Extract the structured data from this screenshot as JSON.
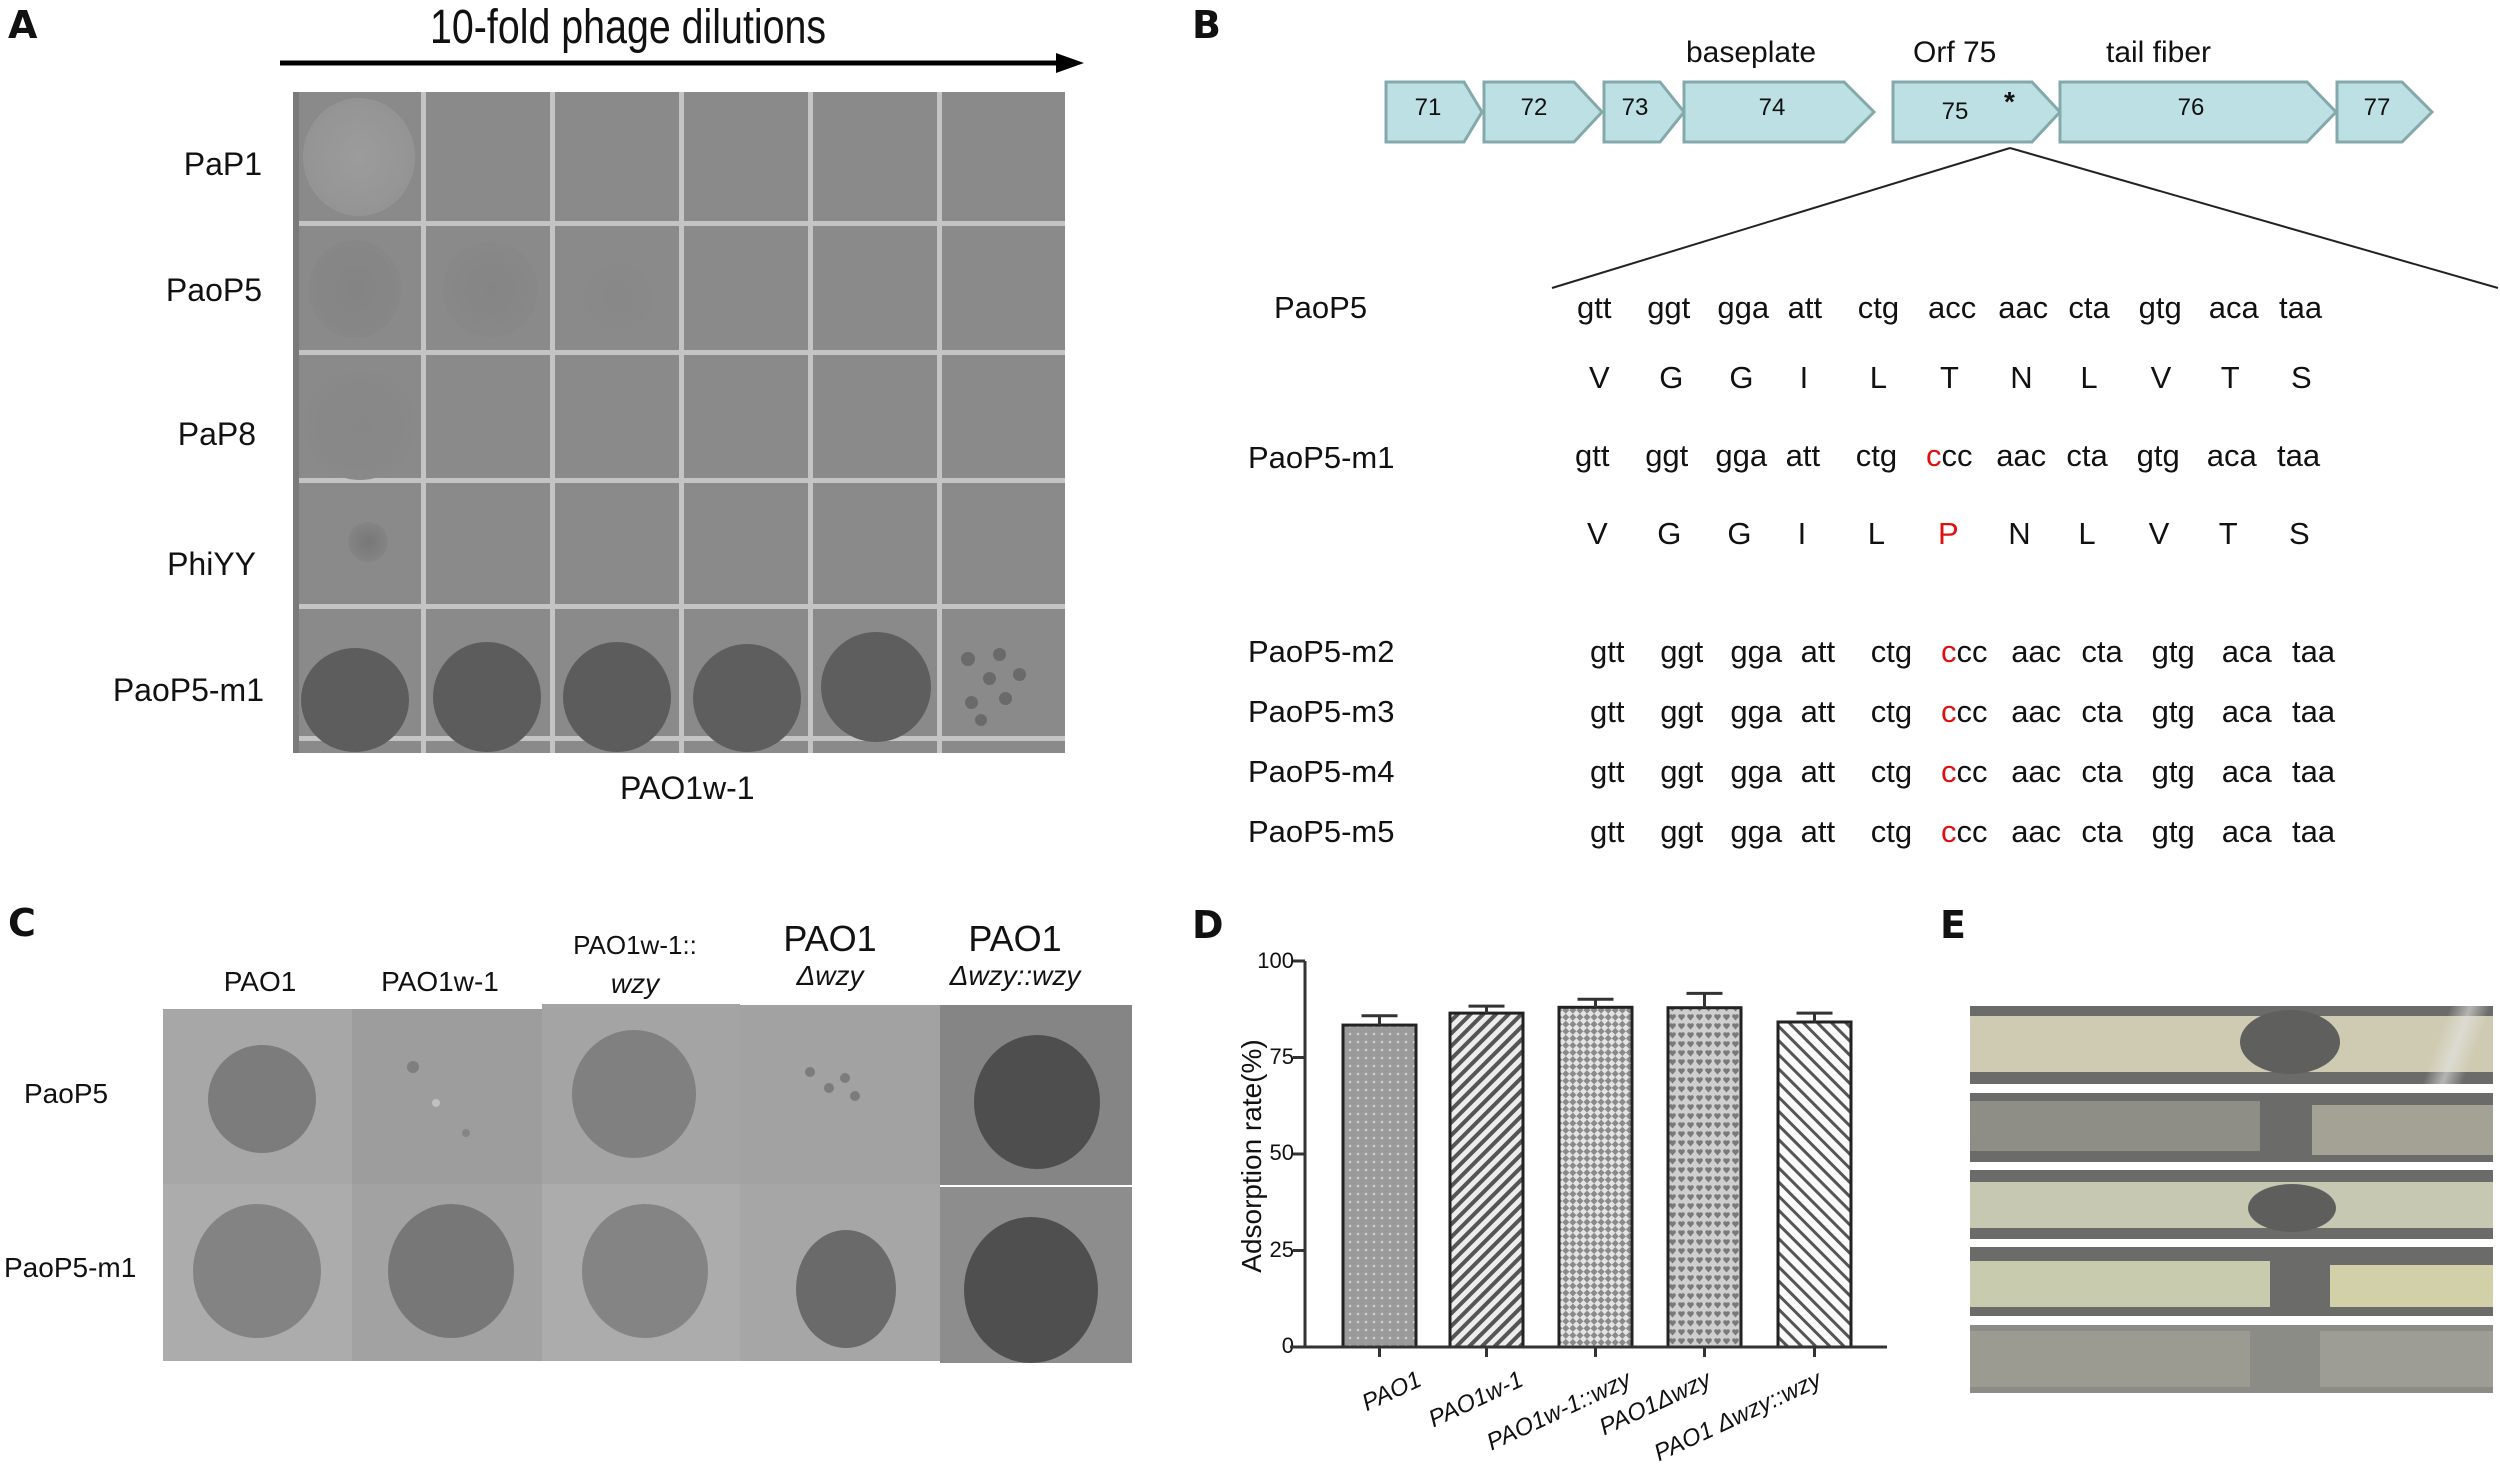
{
  "figure": {
    "panels": [
      "A",
      "B",
      "C",
      "D",
      "E"
    ]
  },
  "panelA": {
    "letter": "A",
    "title": "10-fold phage dilutions",
    "row_labels": [
      "PaP1",
      "PaoP5",
      "PaP8",
      "PhiYY",
      "PaoP5-m1"
    ],
    "columns": 6,
    "host_label": "PAO1w-1",
    "spot_results": {
      "PaP1": [
        "faint",
        "none",
        "none",
        "none",
        "none",
        "none"
      ],
      "PaoP5": [
        "turbid",
        "faint plaques",
        "faint plaques",
        "none",
        "none",
        "none"
      ],
      "PaP8": [
        "faint",
        "faint",
        "none",
        "none",
        "none",
        "none"
      ],
      "PhiYY": [
        "faint",
        "none",
        "none",
        "none",
        "none",
        "none"
      ],
      "PaoP5-m1": [
        "clear",
        "clear",
        "clear",
        "clear",
        "clear",
        "individual plaques"
      ]
    }
  },
  "panelB": {
    "letter": "B",
    "genes": [
      {
        "id": "71",
        "label": ""
      },
      {
        "id": "72",
        "label": ""
      },
      {
        "id": "73",
        "label": ""
      },
      {
        "id": "74",
        "label": "baseplate"
      },
      {
        "id": "75",
        "label": "Orf 75",
        "mark": "*"
      },
      {
        "id": "76",
        "label": "tail fiber"
      },
      {
        "id": "77",
        "label": ""
      }
    ],
    "sequences": [
      {
        "name": "PaoP5",
        "codons": [
          "gtt",
          "ggt",
          "gga",
          "att",
          "ctg",
          "acc",
          "aac",
          "cta",
          "gtg",
          "aca",
          "taa"
        ],
        "aa": [
          "V",
          "G",
          "G",
          "I",
          "L",
          "T",
          "N",
          "L",
          "V",
          "T",
          "S"
        ]
      },
      {
        "name": "PaoP5-m1",
        "codons": [
          "gtt",
          "ggt",
          "gga",
          "att",
          "ctg",
          "ccc",
          "aac",
          "cta",
          "gtg",
          "aca",
          "taa"
        ],
        "aa": [
          "V",
          "G",
          "G",
          "I",
          "L",
          "P",
          "N",
          "L",
          "V",
          "T",
          "S"
        ],
        "mutant_codon_index": 5,
        "mutant_base": "c",
        "mutant_rest": "cc"
      },
      {
        "name": "PaoP5-m2",
        "codons": [
          "gtt",
          "ggt",
          "gga",
          "att",
          "ctg",
          "ccc",
          "aac",
          "cta",
          "gtg",
          "aca",
          "taa"
        ],
        "mutant_codon_index": 5,
        "mutant_base": "c",
        "mutant_rest": "cc"
      },
      {
        "name": "PaoP5-m3",
        "codons": [
          "gtt",
          "ggt",
          "gga",
          "att",
          "ctg",
          "ccc",
          "aac",
          "cta",
          "gtg",
          "aca",
          "taa"
        ],
        "mutant_codon_index": 5,
        "mutant_base": "c",
        "mutant_rest": "cc"
      },
      {
        "name": "PaoP5-m4",
        "codons": [
          "gtt",
          "ggt",
          "gga",
          "att",
          "ctg",
          "ccc",
          "aac",
          "cta",
          "gtg",
          "aca",
          "taa"
        ],
        "mutant_codon_index": 5,
        "mutant_base": "c",
        "mutant_rest": "cc"
      },
      {
        "name": "PaoP5-m5",
        "codons": [
          "gtt",
          "ggt",
          "gga",
          "att",
          "ctg",
          "ccc",
          "aac",
          "cta",
          "gtg",
          "aca",
          "taa"
        ],
        "mutant_codon_index": 5,
        "mutant_base": "c",
        "mutant_rest": "cc"
      }
    ],
    "colors": {
      "gene_fill": "#bce0e3",
      "gene_stroke": "#84a9ab",
      "mutation": "#e01010"
    }
  },
  "panelC": {
    "letter": "C",
    "columns": [
      {
        "line1": "PAO1",
        "line2": ""
      },
      {
        "line1": "PAO1w-1",
        "line2": ""
      },
      {
        "line1": "PAO1w-1::",
        "line2": "wzy"
      },
      {
        "line1": "PAO1",
        "line2": "Δwzy"
      },
      {
        "line1": "PAO1",
        "line2": "Δwzy::wzy"
      }
    ],
    "rows": [
      "PaoP5",
      "PaoP5-m1"
    ]
  },
  "panelD": {
    "letter": "D"
  },
  "chart_data": {
    "type": "bar",
    "title": "",
    "xlabel": "",
    "ylabel": "Adsorption rate(%)",
    "ylim": [
      0,
      100
    ],
    "yticks": [
      0,
      25,
      50,
      75,
      100
    ],
    "categories": [
      "PAO1",
      "PAO1w-1",
      "PAO1w-1::wzy",
      "PAO1Δwzy",
      "PAO1 Δwzy::wzy"
    ],
    "values": [
      83.4,
      86.5,
      88.0,
      87.9,
      84.2
    ],
    "error_upper": [
      85.8,
      88.3,
      90.1,
      91.6,
      86.5
    ],
    "patterns": [
      "dots-dark",
      "diagonal-hatch",
      "checker",
      "heart-dots",
      "back-diagonal-hatch"
    ],
    "grid": false,
    "legend": null
  },
  "panelE": {
    "letter": "E",
    "strips": 5
  }
}
